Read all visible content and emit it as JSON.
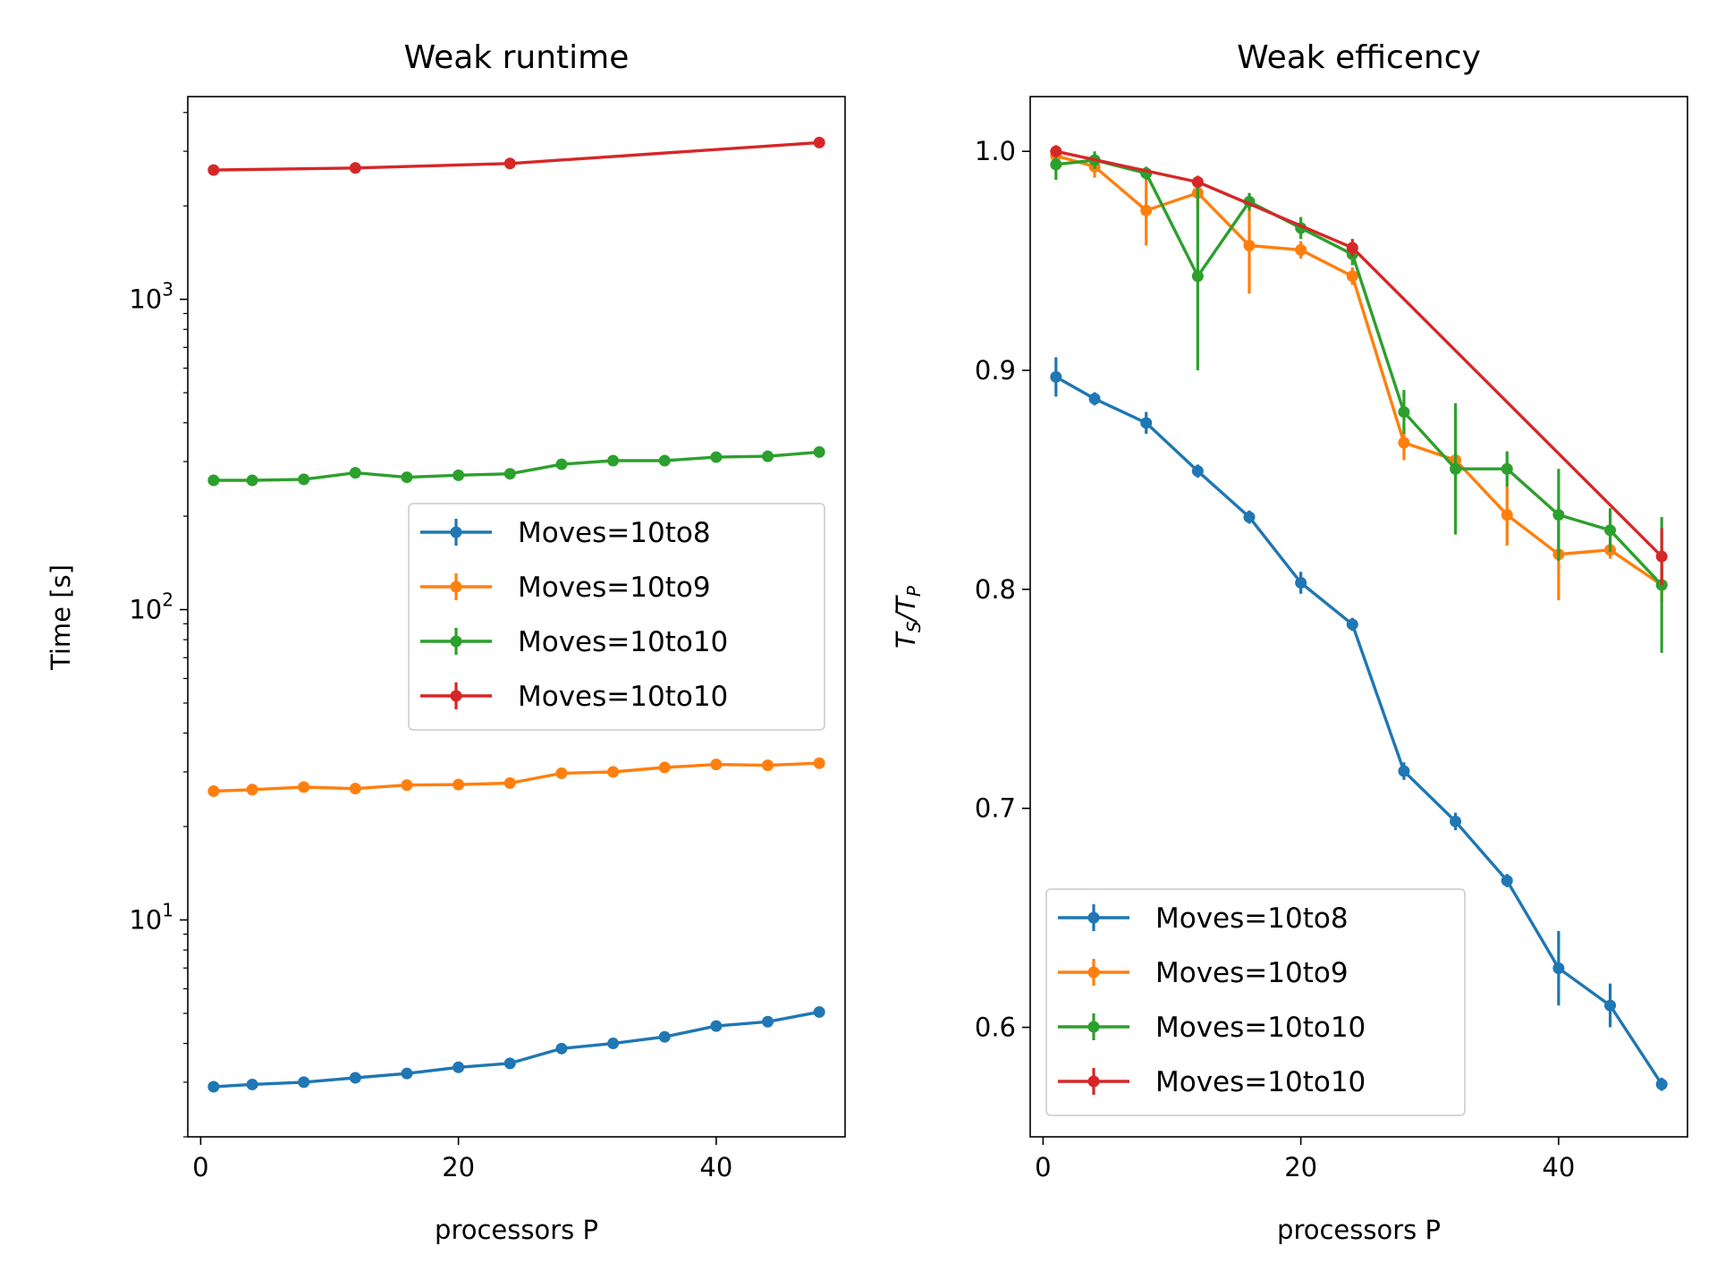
{
  "chart_data": [
    {
      "type": "line",
      "title": "Weak runtime",
      "xlabel": "processors P",
      "ylabel": "Time [s]",
      "yscale": "log",
      "xlim": [
        -1,
        50
      ],
      "ylim": [
        2,
        4500
      ],
      "xticks": [
        0,
        20,
        40
      ],
      "xtick_labels": [
        "0",
        "20",
        "40"
      ],
      "yticks": [
        10,
        100,
        1000
      ],
      "ytick_base": "10",
      "ytick_exps": [
        "1",
        "2",
        "3"
      ],
      "legend_position": "center-right",
      "series": [
        {
          "name": "Moves=10to8",
          "color": "#1f77b4",
          "x": [
            1,
            4,
            8,
            12,
            16,
            20,
            24,
            28,
            32,
            36,
            40,
            44,
            48
          ],
          "y": [
            2.9,
            2.95,
            3.0,
            3.1,
            3.2,
            3.35,
            3.45,
            3.85,
            4.0,
            4.2,
            4.55,
            4.7,
            5.05
          ],
          "err": [
            0,
            0,
            0,
            0,
            0,
            0,
            0,
            0,
            0,
            0,
            0,
            0,
            0
          ]
        },
        {
          "name": "Moves=10to9",
          "color": "#ff7f0e",
          "x": [
            1,
            4,
            8,
            12,
            16,
            20,
            24,
            28,
            32,
            36,
            40,
            44,
            48
          ],
          "y": [
            26,
            26.3,
            26.8,
            26.5,
            27.2,
            27.3,
            27.6,
            29.7,
            30,
            31,
            31.7,
            31.5,
            32
          ],
          "err": [
            0,
            0,
            0,
            0,
            0,
            0,
            0,
            0,
            0,
            0,
            0,
            0,
            0
          ]
        },
        {
          "name": "Moves=10to10",
          "color": "#2ca02c",
          "x": [
            1,
            4,
            8,
            12,
            16,
            20,
            24,
            28,
            32,
            36,
            40,
            44,
            48
          ],
          "y": [
            261,
            261,
            263,
            276,
            267,
            271,
            274,
            294,
            302,
            302,
            310,
            312,
            322
          ],
          "err": [
            0,
            0,
            0,
            0,
            0,
            0,
            0,
            0,
            0,
            0,
            0,
            0,
            0
          ]
        },
        {
          "name": "Moves=10to10",
          "color": "#d62728",
          "x": [
            1,
            12,
            24,
            48
          ],
          "y": [
            2610,
            2650,
            2740,
            3200
          ],
          "err": [
            0,
            0,
            0,
            0
          ]
        }
      ]
    },
    {
      "type": "line",
      "title": "Weak efficency",
      "xlabel": "processors P",
      "ylabel_main1": "T",
      "ylabel_sub1": "S",
      "ylabel_sep": "/",
      "ylabel_main2": "T",
      "ylabel_sub2": "P",
      "yscale": "linear",
      "xlim": [
        -1,
        50
      ],
      "ylim": [
        0.55,
        1.025
      ],
      "xticks": [
        0,
        20,
        40
      ],
      "xtick_labels": [
        "0",
        "20",
        "40"
      ],
      "yticks": [
        0.6,
        0.7,
        0.8,
        0.9,
        1.0
      ],
      "ytick_labels": [
        "0.6",
        "0.7",
        "0.8",
        "0.9",
        "1.0"
      ],
      "legend_position": "lower-left",
      "series": [
        {
          "name": "Moves=10to8",
          "color": "#1f77b4",
          "x": [
            1,
            4,
            8,
            12,
            16,
            20,
            24,
            28,
            32,
            36,
            40,
            44,
            48
          ],
          "y": [
            0.897,
            0.887,
            0.876,
            0.854,
            0.833,
            0.803,
            0.784,
            0.717,
            0.694,
            0.667,
            0.627,
            0.61,
            0.574
          ],
          "err": [
            0.009,
            0.003,
            0.005,
            0.003,
            0.003,
            0.005,
            0.003,
            0.004,
            0.004,
            0.003,
            0.017,
            0.01,
            0.003
          ]
        },
        {
          "name": "Moves=10to9",
          "color": "#ff7f0e",
          "x": [
            1,
            4,
            8,
            12,
            16,
            20,
            24,
            28,
            32,
            36,
            40,
            44,
            48
          ],
          "y": [
            0.998,
            0.993,
            0.973,
            0.981,
            0.957,
            0.955,
            0.943,
            0.867,
            0.859,
            0.834,
            0.816,
            0.818,
            0.802
          ],
          "err": [
            0.005,
            0.005,
            0.016,
            0.008,
            0.022,
            0.004,
            0.004,
            0.008,
            0.004,
            0.014,
            0.021,
            0.004,
            0.008
          ]
        },
        {
          "name": "Moves=10to10",
          "color": "#2ca02c",
          "x": [
            1,
            4,
            8,
            12,
            16,
            20,
            24,
            28,
            32,
            36,
            40,
            44,
            48
          ],
          "y": [
            0.994,
            0.996,
            0.99,
            0.943,
            0.977,
            0.965,
            0.953,
            0.881,
            0.855,
            0.855,
            0.834,
            0.827,
            0.802
          ],
          "err": [
            0.007,
            0.004,
            0.003,
            0.043,
            0.004,
            0.005,
            0.005,
            0.01,
            0.03,
            0.008,
            0.021,
            0.01,
            0.031
          ]
        },
        {
          "name": "Moves=10to10",
          "color": "#d62728",
          "x": [
            1,
            12,
            24,
            48
          ],
          "y": [
            1.0,
            0.986,
            0.956,
            0.815
          ],
          "err": [
            0.002,
            0.002,
            0.004,
            0.013
          ]
        }
      ]
    }
  ]
}
